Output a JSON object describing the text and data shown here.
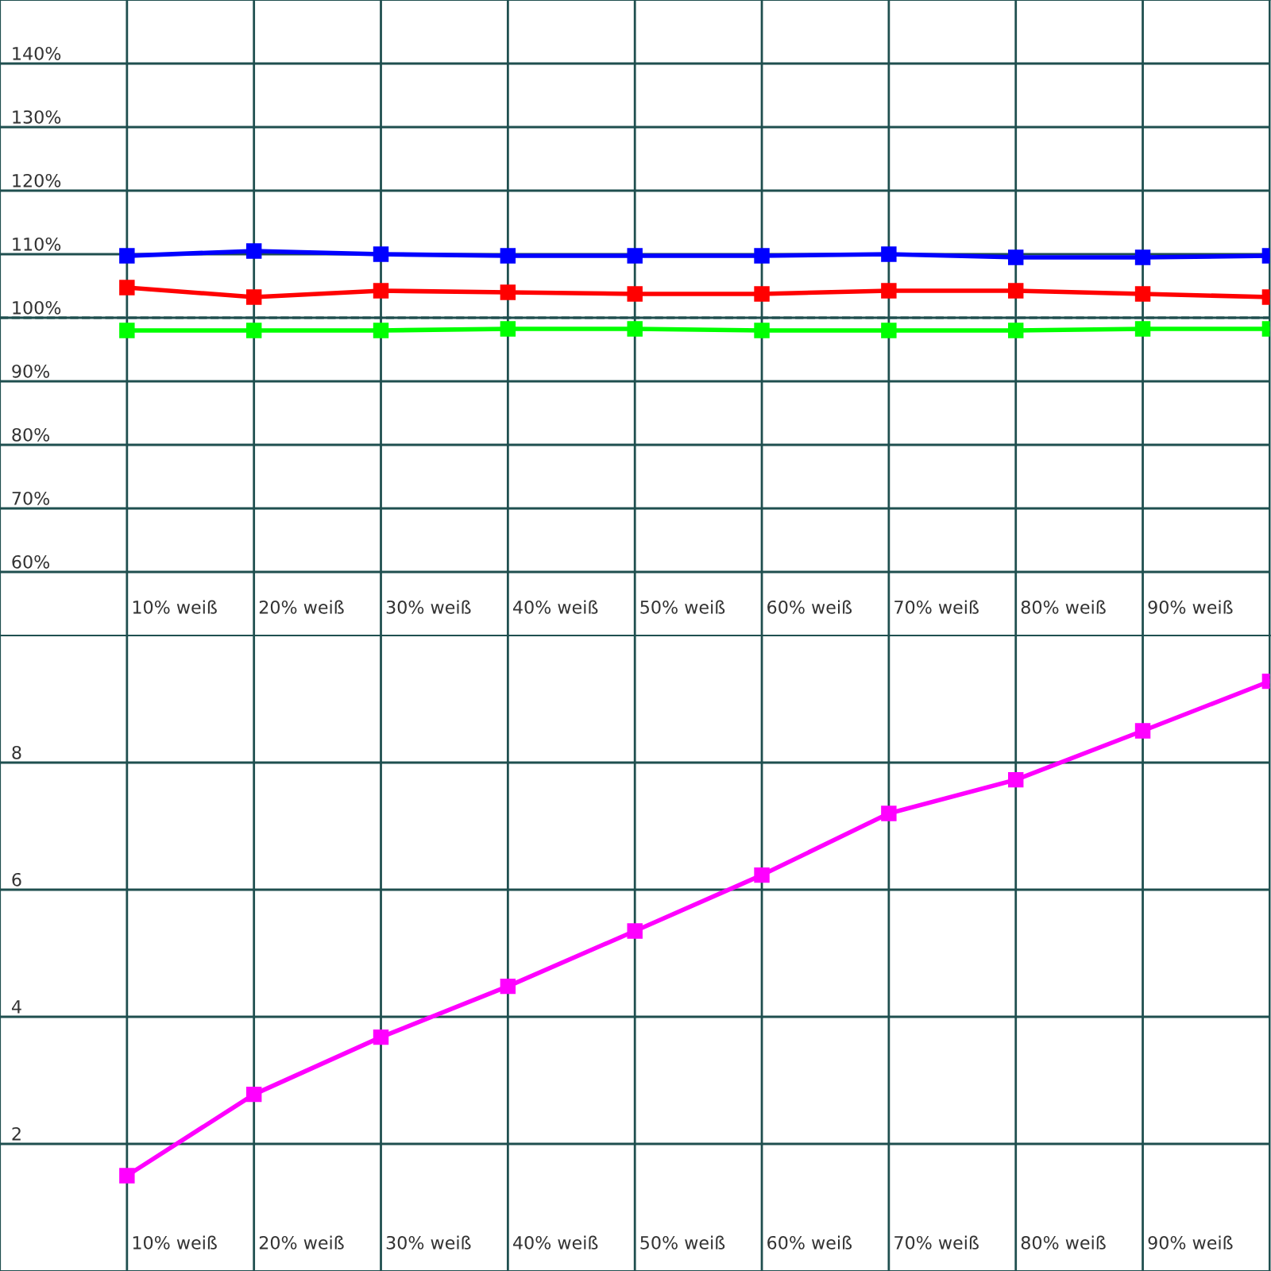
{
  "chart_data": [
    {
      "type": "line",
      "categories": [
        "10% weiß",
        "20% weiß",
        "30% weiß",
        "40% weiß",
        "50% weiß",
        "60% weiß",
        "70% weiß",
        "80% weiß",
        "90% weiß",
        null
      ],
      "series": [
        {
          "color": "#0000ff",
          "values": [
            109.75,
            110.5,
            110,
            109.75,
            109.75,
            109.75,
            110,
            109.5,
            109.5,
            109.75
          ]
        },
        {
          "color": "#ff0000",
          "values": [
            104.75,
            103.25,
            104.25,
            104,
            103.75,
            103.75,
            104.25,
            104.25,
            103.75,
            103.25
          ]
        },
        {
          "color": "#00ff00",
          "values": [
            98,
            98,
            98,
            98.25,
            98.25,
            98,
            98,
            98,
            98.25,
            98.25
          ]
        }
      ],
      "ylim": [
        50,
        150
      ],
      "yticks": [
        {
          "value": 60,
          "label": "60%"
        },
        {
          "value": 70,
          "label": "70%"
        },
        {
          "value": 80,
          "label": "80%"
        },
        {
          "value": 90,
          "label": "90%"
        },
        {
          "value": 100,
          "label": "100%"
        },
        {
          "value": 110,
          "label": "110%"
        },
        {
          "value": 120,
          "label": "120%"
        },
        {
          "value": 130,
          "label": "130%"
        },
        {
          "value": 140,
          "label": "140%"
        }
      ],
      "ref_lines": [
        {
          "axis": "y",
          "value": 100,
          "color": "#1f4f4f",
          "line_style": "dashed"
        }
      ],
      "grid": true,
      "legend": false,
      "marker": "square",
      "line_style": "solid"
    },
    {
      "type": "line",
      "categories": [
        "10% weiß",
        "20% weiß",
        "30% weiß",
        "40% weiß",
        "50% weiß",
        "60% weiß",
        "70% weiß",
        "80% weiß",
        "90% weiß",
        null
      ],
      "series": [
        {
          "color": "#ff00ff",
          "values": [
            1.5,
            2.78,
            3.68,
            4.48,
            5.35,
            6.23,
            7.2,
            7.73,
            8.5,
            9.28
          ]
        }
      ],
      "ylim": [
        0,
        10
      ],
      "yticks": [
        2,
        4,
        6,
        8
      ],
      "grid": true,
      "legend": false,
      "marker": "square",
      "line_style": "solid"
    }
  ]
}
